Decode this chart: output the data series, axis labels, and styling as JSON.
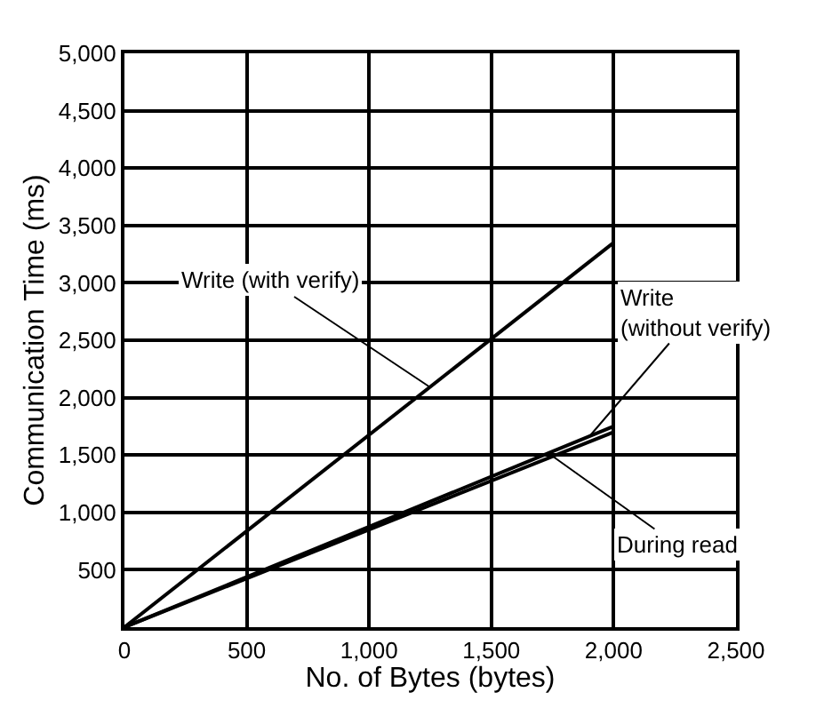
{
  "chart_data": {
    "type": "line",
    "xlabel": "No. of Bytes (bytes)",
    "ylabel": "Communication Time (ms)",
    "x": [
      0,
      2000
    ],
    "series": [
      {
        "color": "#000000",
        "values": [
          0,
          3350
        ]
      },
      {
        "color": "#000000",
        "values": [
          0,
          1750
        ]
      },
      {
        "color": "#000000",
        "values": [
          0,
          1700
        ]
      }
    ],
    "xlim": [
      0,
      2500
    ],
    "ylim": [
      0,
      5000
    ],
    "xticks": [
      0,
      {
        "value": 500,
        "label": "500"
      },
      {
        "value": 1000,
        "label": "1,000"
      },
      {
        "value": 1500,
        "label": "1,500"
      },
      {
        "value": 2000,
        "label": "2,000"
      },
      {
        "value": 2500,
        "label": "2,500"
      }
    ],
    "yticks": [
      {
        "value": 500,
        "label": "500"
      },
      {
        "value": 1000,
        "label": "1,000"
      },
      {
        "value": 1500,
        "label": "1,500"
      },
      {
        "value": 2000,
        "label": "2,000"
      },
      {
        "value": 2500,
        "label": "2,500"
      },
      {
        "value": 3000,
        "label": "3,000"
      },
      {
        "value": 3500,
        "label": "3,500"
      },
      {
        "value": 4000,
        "label": "4,000"
      },
      {
        "value": 4500,
        "label": "4,500"
      },
      {
        "value": 5000,
        "label": "5,000"
      }
    ],
    "grid": true,
    "marker": "none",
    "line_style": "solid",
    "annotations": [
      {
        "text": "Write (with verify)",
        "x": 1250,
        "y": 2090
      },
      {
        "text": "Write\n(without verify)",
        "x": 1900,
        "y": 1660
      },
      {
        "text": "During read",
        "x": 1750,
        "y": 1490
      }
    ]
  }
}
